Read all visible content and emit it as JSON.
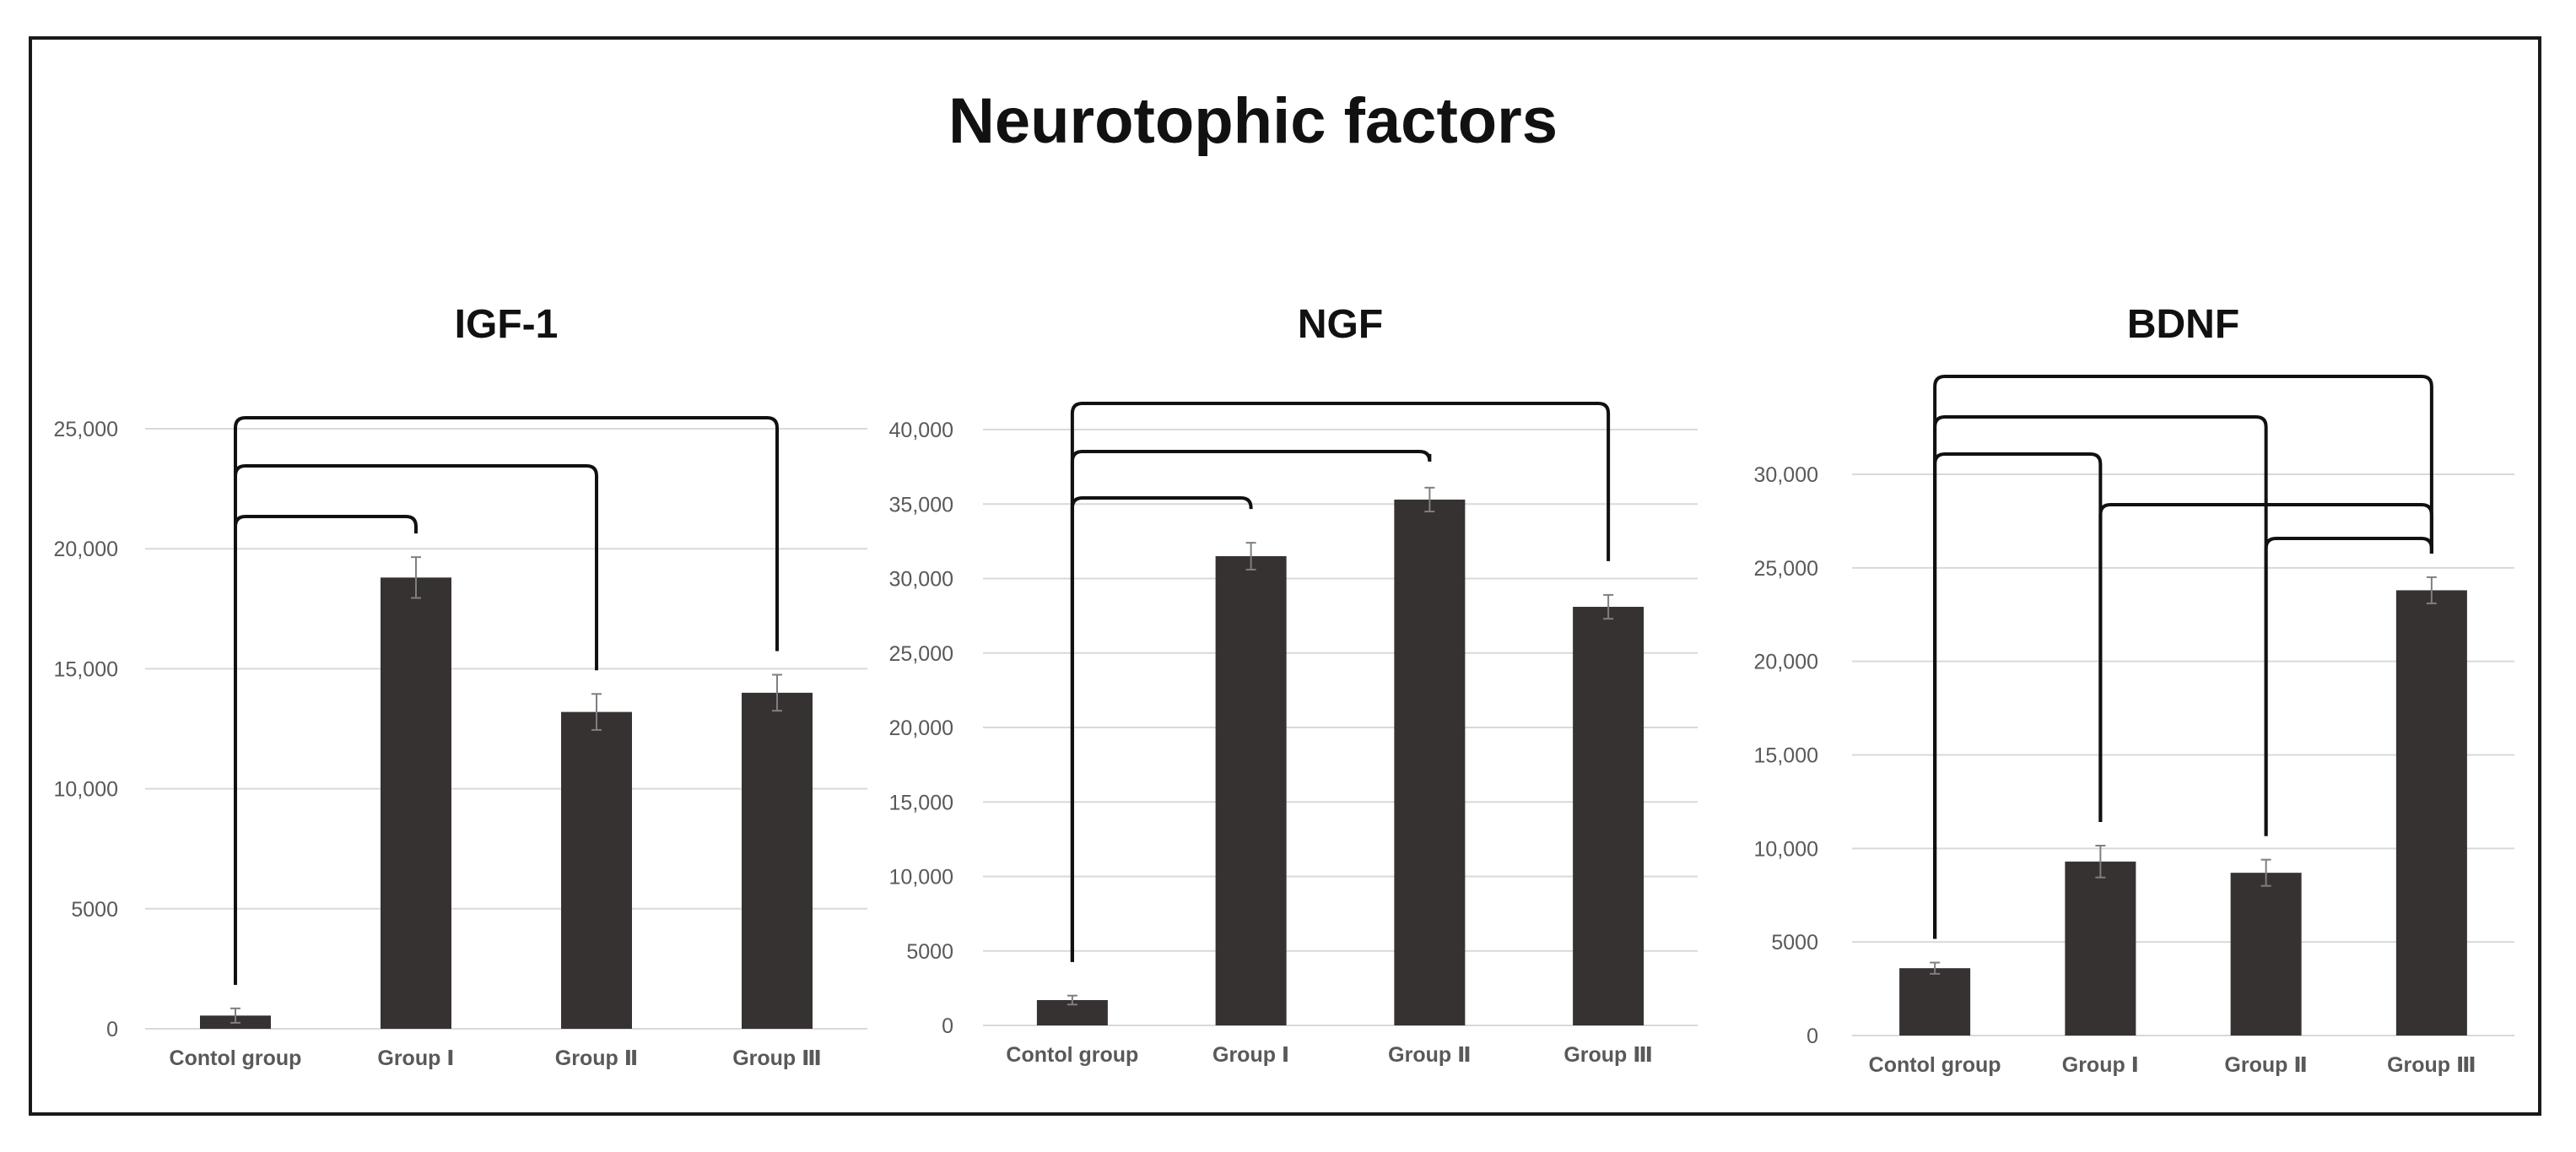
{
  "figure": {
    "title": "Neurotophic factors"
  },
  "colors": {
    "bar": "#363231",
    "grid": "#d9d9d9",
    "bracket": "#111111",
    "axis_text": "#595959",
    "error": "#7f7f7f"
  },
  "chart_data": [
    {
      "type": "bar",
      "title": "IGF-1",
      "categories": [
        "Contol group",
        "Group Ⅰ",
        "Group Ⅱ",
        "Group Ⅲ"
      ],
      "values": [
        550,
        18800,
        13200,
        14000
      ],
      "errors": [
        300,
        850,
        750,
        750
      ],
      "ylim": [
        0,
        25000
      ],
      "yticks": [
        0,
        5000,
        10000,
        15000,
        20000,
        25000
      ],
      "ytick_labels": [
        "0",
        "5000",
        "10,000",
        "15,000",
        "20,000",
        "25,000"
      ],
      "xlabel": "",
      "ylabel": "",
      "grid": true,
      "comparisons": [
        [
          0,
          1
        ],
        [
          0,
          2
        ],
        [
          0,
          3
        ]
      ]
    },
    {
      "type": "bar",
      "title": "NGF",
      "categories": [
        "Contol group",
        "Group Ⅰ",
        "Group Ⅱ",
        "Group Ⅲ"
      ],
      "values": [
        1700,
        31500,
        35300,
        28100
      ],
      "errors": [
        300,
        900,
        800,
        800
      ],
      "ylim": [
        0,
        40000
      ],
      "yticks": [
        0,
        5000,
        10000,
        15000,
        20000,
        25000,
        30000,
        35000,
        40000
      ],
      "ytick_labels": [
        "0",
        "5000",
        "10,000",
        "15,000",
        "20,000",
        "25,000",
        "30,000",
        "35,000",
        "40,000"
      ],
      "xlabel": "",
      "ylabel": "",
      "grid": true,
      "comparisons": [
        [
          0,
          1
        ],
        [
          0,
          2
        ],
        [
          0,
          3
        ]
      ]
    },
    {
      "type": "bar",
      "title": "BDNF",
      "categories": [
        "Contol group",
        "Group Ⅰ",
        "Group Ⅱ",
        "Group Ⅲ"
      ],
      "values": [
        3600,
        9300,
        8700,
        23800
      ],
      "errors": [
        300,
        850,
        700,
        700
      ],
      "ylim": [
        0,
        30000
      ],
      "yticks": [
        0,
        5000,
        10000,
        15000,
        20000,
        25000,
        30000
      ],
      "ytick_labels": [
        "0",
        "5000",
        "10,000",
        "15,000",
        "20,000",
        "25,000",
        "30,000"
      ],
      "xlabel": "",
      "ylabel": "",
      "grid": true,
      "comparisons": [
        [
          0,
          1
        ],
        [
          0,
          2
        ],
        [
          0,
          3
        ],
        [
          1,
          3
        ],
        [
          2,
          3
        ]
      ]
    }
  ]
}
